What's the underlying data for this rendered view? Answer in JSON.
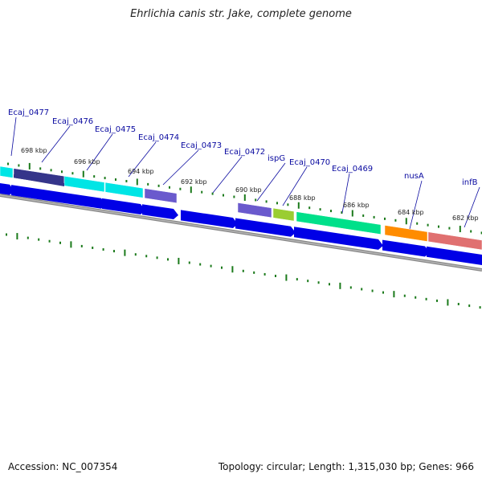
{
  "title": "Ehrlichia canis str. Jake, complete genome",
  "footer": {
    "accession": "Accession: NC_007354",
    "topology": "Topology: circular; Length: 1,315,030 bp; Genes: 966"
  },
  "colors": {
    "tick": "#1b7a1b",
    "gene_label": "#0a0aa0",
    "backbone": "#888888",
    "cds": "#0000e6"
  },
  "map": {
    "kbp_labels": [
      "698 kbp",
      "696 kbp",
      "694 kbp",
      "692 kbp",
      "690 kbp",
      "688 kbp",
      "686 kbp",
      "684 kbp",
      "682 kbp"
    ],
    "gene_labels": [
      "Ecaj_0477",
      "Ecaj_0476",
      "Ecaj_0475",
      "Ecaj_0474",
      "Ecaj_0473",
      "Ecaj_0472",
      "ispG",
      "Ecaj_0470",
      "Ecaj_0469",
      "nusA",
      "infB"
    ],
    "feature_colors": [
      "#00e5e5",
      "#35358a",
      "#00e5e5",
      "#00e5e5",
      "#6a5acd",
      "#6a5acd",
      "#9acd32",
      "#00e08a",
      "#ff8c00",
      "#e07070"
    ],
    "cds_count": 12
  }
}
